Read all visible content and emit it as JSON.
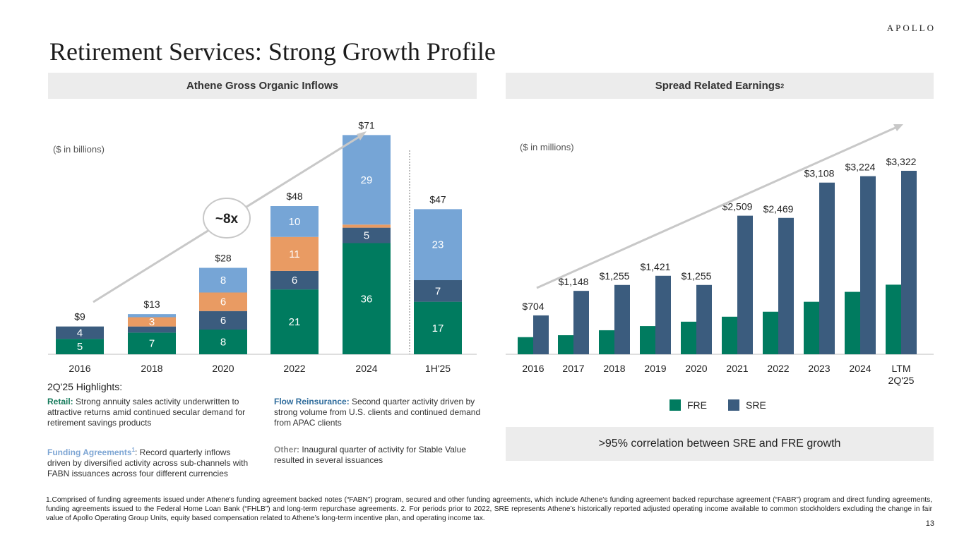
{
  "brand": "APOLLO",
  "title": "Retirement Services: Strong Growth Profile",
  "left_panel": {
    "title": "Athene Gross Organic Inflows",
    "units": "($ in billions)",
    "multiplier_label": "~8x"
  },
  "right_panel": {
    "title": "Spread Related Earnings",
    "title_sup": "2",
    "units": "($ in millions)"
  },
  "colors": {
    "green": "#007B5F",
    "navy": "#3B5C7E",
    "orange": "#E99B63",
    "lightblue": "#76A5D6",
    "arrow": "#C8C8C8",
    "header_bg": "#ECECEC"
  },
  "chart_data": [
    {
      "type": "bar",
      "stacked": true,
      "title": "Athene Gross Organic Inflows",
      "ylabel": "($ in billions)",
      "categories": [
        "2016",
        "2018",
        "2020",
        "2022",
        "2024",
        "1H'25"
      ],
      "series": [
        {
          "name": "Retail",
          "color": "#007B5F",
          "values": [
            5,
            7,
            8,
            21,
            36,
            17
          ],
          "labels": [
            "5",
            "7",
            "8",
            "21",
            "36",
            "17"
          ]
        },
        {
          "name": "Flow Reinsurance",
          "color": "#3B5C7E",
          "values": [
            4,
            2,
            6,
            6,
            5,
            7
          ],
          "labels": [
            "4",
            "",
            "6",
            "6",
            "5",
            "7"
          ]
        },
        {
          "name": "Other",
          "color": "#E99B63",
          "values": [
            0,
            3,
            6,
            11,
            1,
            0
          ],
          "labels": [
            "",
            "3",
            "6",
            "11",
            "",
            ""
          ]
        },
        {
          "name": "Funding Agreements",
          "color": "#76A5D6",
          "values": [
            0,
            1,
            8,
            10,
            29,
            23
          ],
          "labels": [
            "",
            "",
            "8",
            "10",
            "29",
            "23"
          ]
        }
      ],
      "totals": [
        "$9",
        "$13",
        "$28",
        "$48",
        "$71",
        "$47"
      ],
      "ylim": [
        0,
        80
      ],
      "divider_before": "1H'25"
    },
    {
      "type": "bar",
      "title": "Spread Related Earnings",
      "ylabel": "($ in millions)",
      "categories": [
        "2016",
        "2017",
        "2018",
        "2019",
        "2020",
        "2021",
        "2022",
        "2023",
        "2024",
        "LTM\n2Q'25"
      ],
      "series": [
        {
          "name": "FRE",
          "color": "#007B5F",
          "values": [
            310,
            345,
            435,
            510,
            590,
            680,
            770,
            950,
            1130,
            1260
          ]
        },
        {
          "name": "SRE",
          "color": "#3B5C7E",
          "values": [
            704,
            1148,
            1255,
            1421,
            1255,
            2509,
            2469,
            3108,
            3224,
            3322
          ]
        }
      ],
      "labels": [
        "$704",
        "$1,148",
        "$1,255",
        "$1,421",
        "$1,255",
        "$2,509",
        "$2,469",
        "$3,108",
        "$3,224",
        "$3,322"
      ],
      "ylim": [
        0,
        3700
      ],
      "legend": [
        "FRE",
        "SRE"
      ]
    }
  ],
  "highlights": {
    "title": "2Q'25 Highlights:",
    "retail": {
      "label": "Retail:",
      "text": "Strong annuity sales activity underwritten to attractive returns amid continued secular demand for retirement savings products"
    },
    "flow": {
      "label": "Flow Reinsurance:",
      "text": "Second quarter activity driven by strong volume from U.S. clients and continued demand from APAC clients"
    },
    "funding": {
      "label": "Funding Agreements",
      "sup": "1",
      "text": ": Record quarterly inflows driven by diversified activity across sub-channels with FABN issuances across four different currencies"
    },
    "other": {
      "label": "Other:",
      "text": "Inaugural quarter of activity for Stable Value resulted in several issuances"
    }
  },
  "correlation_note": ">95% correlation between SRE and FRE growth",
  "footnote": "1.Comprised of funding agreements issued under Athene's funding agreement backed notes (“FABN”) program, secured and other funding agreements, which include Athene's funding agreement backed repurchase agreement (“FABR”) program and direct funding agreements, funding agreements issued to the Federal Home Loan Bank (“FHLB”) and long-term repurchase agreements. 2. For periods prior to 2022, SRE represents Athene’s historically reported adjusted operating income available to common stockholders excluding the change in fair value of Apollo Operating Group Units, equity based compensation related to Athene’s long-term incentive plan, and operating income tax.",
  "page_number": "13"
}
